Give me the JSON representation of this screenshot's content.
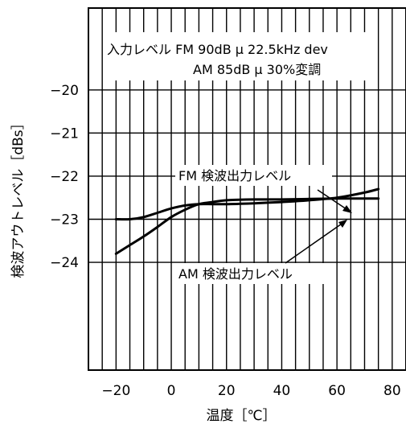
{
  "chart_data": {
    "type": "line",
    "title": "",
    "xlabel": "温度［℃］",
    "ylabel": "検波アウトレベル［dBs］",
    "xlim": [
      -30,
      85
    ],
    "ylim": [
      -26.5,
      -18.1
    ],
    "x_ticks": [
      -20,
      0,
      20,
      40,
      60,
      80
    ],
    "x_tick_labels": [
      "−20",
      "0",
      "20",
      "40",
      "60",
      "80"
    ],
    "y_ticks": [
      -20,
      -21,
      -22,
      -23,
      -24
    ],
    "y_tick_labels": [
      "−20",
      "−21",
      "−22",
      "−23",
      "−24"
    ],
    "grid": true,
    "annotation": {
      "line1": "入力レベル FM 90dB μ 22.5kHz dev",
      "line2": "AM 85dB μ 30%変調"
    },
    "series": [
      {
        "name": "FM 検波出力レベル",
        "x": [
          -20,
          -15,
          -10,
          -5,
          0,
          5,
          10,
          15,
          20,
          30,
          40,
          50,
          60,
          70,
          75
        ],
        "y": [
          -23.0,
          -23.0,
          -22.95,
          -22.85,
          -22.75,
          -22.68,
          -22.65,
          -22.65,
          -22.65,
          -22.63,
          -22.6,
          -22.56,
          -22.5,
          -22.38,
          -22.3
        ]
      },
      {
        "name": "AM 検波出力レベル",
        "x": [
          -20,
          -15,
          -10,
          -5,
          0,
          5,
          10,
          15,
          20,
          30,
          40,
          50,
          60,
          70,
          75
        ],
        "y": [
          -23.8,
          -23.6,
          -23.4,
          -23.18,
          -22.95,
          -22.78,
          -22.65,
          -22.6,
          -22.56,
          -22.54,
          -22.54,
          -22.53,
          -22.52,
          -22.52,
          -22.52
        ]
      }
    ]
  }
}
